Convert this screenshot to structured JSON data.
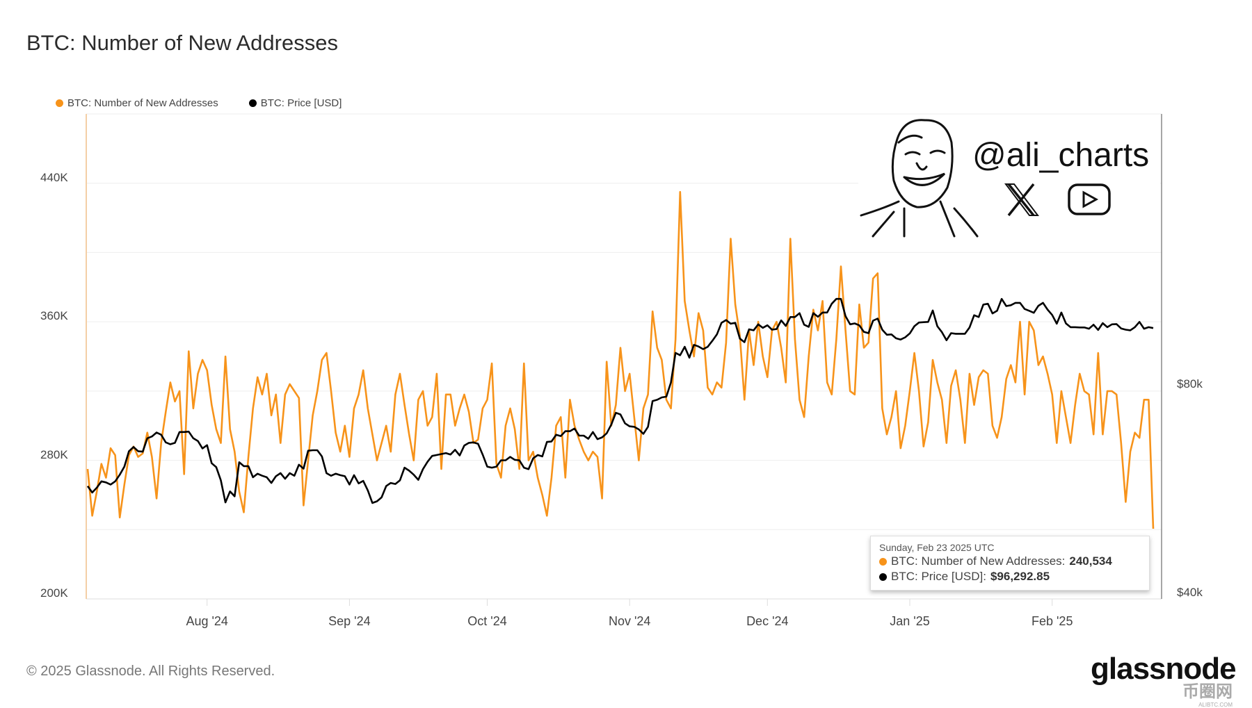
{
  "title": "BTC: Number of New Addresses",
  "legend": [
    {
      "label": "BTC: Number of New Addresses",
      "color": "#f7931a"
    },
    {
      "label": "BTC: Price [USD]",
      "color": "#000000"
    }
  ],
  "footer": "© 2025 Glassnode. All Rights Reserved.",
  "logo": "glassnode",
  "watermark": {
    "handle": "@ali_charts",
    "icons": [
      "x-icon",
      "youtube-icon"
    ],
    "site_logo": "币圈网",
    "site_sub": "ALIBTC.COM"
  },
  "tooltip": {
    "date": "Sunday, Feb 23 2025 UTC",
    "rows": [
      {
        "label": "BTC: Number of New Addresses:",
        "value": "240,534",
        "color": "#f7931a"
      },
      {
        "label": "BTC: Price [USD]:",
        "value": "$96,292.85",
        "color": "#000000"
      }
    ]
  },
  "chart_data": {
    "type": "line",
    "title": "BTC: Number of New Addresses",
    "start_date": "2024-07-06",
    "end_date": "2025-02-23",
    "x_ticks": [
      {
        "date": "2024-08-01",
        "label": "Aug '24"
      },
      {
        "date": "2024-09-01",
        "label": "Sep '24"
      },
      {
        "date": "2024-10-01",
        "label": "Oct '24"
      },
      {
        "date": "2024-11-01",
        "label": "Nov '24"
      },
      {
        "date": "2024-12-01",
        "label": "Dec '24"
      },
      {
        "date": "2025-01-01",
        "label": "Jan '25"
      },
      {
        "date": "2025-02-01",
        "label": "Feb '25"
      }
    ],
    "y_left": {
      "ticks": [
        {
          "v": 200,
          "label": "200K"
        },
        {
          "v": 280,
          "label": "280K"
        },
        {
          "v": 360,
          "label": "360K"
        },
        {
          "v": 440,
          "label": "440K"
        }
      ],
      "grid": [
        200,
        240,
        280,
        320,
        360,
        400,
        440
      ],
      "range": [
        200,
        480
      ],
      "unit": "K addresses"
    },
    "y_right": {
      "ticks": [
        {
          "v": 40,
          "label": "$40k"
        },
        {
          "v": 80,
          "label": "$80k"
        }
      ],
      "scale": "log",
      "range": [
        39.2,
        196
      ],
      "unit": "k USD"
    },
    "series": [
      {
        "name": "BTC: Number of New Addresses",
        "color": "#f7931a",
        "unit": "K",
        "values": [
          275,
          248,
          262,
          278,
          270,
          287,
          283,
          247,
          266,
          283,
          288,
          282,
          284,
          296,
          282,
          258,
          290,
          308,
          325,
          314,
          320,
          272,
          343,
          310,
          330,
          338,
          332,
          312,
          298,
          290,
          340,
          298,
          285,
          262,
          250,
          282,
          310,
          328,
          318,
          330,
          306,
          318,
          290,
          318,
          324,
          320,
          316,
          254,
          280,
          306,
          320,
          338,
          342,
          320,
          296,
          285,
          300,
          282,
          310,
          318,
          332,
          310,
          295,
          280,
          290,
          300,
          285,
          318,
          330,
          312,
          295,
          280,
          315,
          320,
          300,
          305,
          330,
          275,
          318,
          318,
          300,
          310,
          318,
          308,
          290,
          292,
          310,
          315,
          336,
          278,
          270,
          300,
          310,
          298,
          275,
          336,
          280,
          285,
          270,
          260,
          248,
          270,
          300,
          305,
          270,
          315,
          300,
          292,
          285,
          280,
          285,
          282,
          258,
          337,
          300,
          312,
          345,
          320,
          330,
          305,
          280,
          310,
          318,
          366,
          345,
          338,
          315,
          310,
          350,
          435,
          372,
          355,
          340,
          365,
          355,
          322,
          318,
          325,
          322,
          348,
          408,
          370,
          352,
          315,
          355,
          335,
          360,
          340,
          328,
          355,
          360,
          345,
          325,
          408,
          350,
          315,
          305,
          340,
          367,
          355,
          372,
          325,
          318,
          350,
          392,
          355,
          320,
          318,
          370,
          345,
          348,
          385,
          388,
          310,
          295,
          305,
          320,
          287,
          300,
          320,
          342,
          320,
          288,
          302,
          338,
          325,
          315,
          290,
          323,
          332,
          315,
          290,
          330,
          312,
          328,
          332,
          330,
          300,
          293,
          305,
          327,
          335,
          325,
          360,
          318,
          360,
          355,
          335,
          340,
          330,
          318,
          290,
          320,
          305,
          290,
          312,
          330,
          320,
          318,
          295,
          342,
          295,
          320,
          320,
          318,
          290,
          256,
          285,
          296,
          293,
          315,
          315,
          240.534
        ]
      },
      {
        "name": "BTC: Price [USD]",
        "color": "#000000",
        "unit": "k USD",
        "values": [
          57.0,
          55.8,
          56.7,
          57.9,
          57.7,
          57.3,
          57.9,
          59.2,
          60.8,
          64.0,
          64.9,
          64.0,
          63.9,
          66.8,
          67.2,
          68.1,
          67.6,
          65.9,
          65.5,
          65.8,
          68.2,
          68.2,
          68.3,
          66.8,
          66.2,
          64.6,
          65.3,
          61.5,
          60.7,
          58.1,
          54.0,
          56.0,
          55.1,
          61.7,
          60.9,
          60.9,
          58.7,
          59.4,
          59.0,
          58.7,
          57.6,
          58.9,
          59.5,
          58.4,
          59.5,
          59.0,
          61.2,
          60.4,
          64.1,
          64.2,
          64.2,
          62.9,
          59.5,
          59.0,
          59.4,
          59.1,
          58.9,
          57.3,
          59.1,
          57.5,
          58.0,
          56.2,
          53.9,
          54.2,
          54.9,
          57.0,
          57.6,
          57.4,
          58.1,
          60.6,
          60.0,
          59.2,
          58.2,
          60.3,
          61.8,
          63.0,
          63.2,
          63.4,
          63.6,
          63.3,
          64.3,
          63.1,
          65.2,
          65.8,
          65.9,
          65.6,
          63.3,
          60.8,
          60.6,
          60.8,
          62.1,
          62.1,
          62.8,
          62.2,
          62.1,
          60.6,
          60.3,
          62.5,
          63.2,
          62.9,
          66.0,
          66.1,
          67.6,
          67.3,
          68.4,
          68.4,
          69.0,
          67.4,
          67.4,
          66.7,
          68.2,
          66.6,
          67.0,
          67.9,
          69.9,
          72.7,
          72.3,
          70.2,
          69.5,
          69.4,
          68.8,
          67.8,
          69.4,
          75.6,
          75.9,
          76.5,
          76.7,
          80.4,
          88.7,
          88.0,
          90.5,
          87.3,
          91.1,
          90.6,
          89.8,
          90.5,
          92.3,
          94.3,
          98.0,
          98.9,
          97.7,
          98.0,
          93.0,
          91.9,
          95.9,
          95.6,
          97.5,
          96.4,
          97.2,
          95.8,
          96.0,
          98.8,
          97.0,
          99.9,
          99.9,
          101.2,
          97.4,
          96.7,
          101.2,
          100.0,
          101.4,
          101.4,
          104.4,
          106.1,
          106.1,
          100.2,
          97.5,
          97.8,
          97.2,
          95.1,
          94.7,
          98.7,
          99.4,
          95.8,
          94.2,
          94.3,
          93.1,
          92.7,
          93.4,
          94.6,
          96.9,
          98.1,
          98.2,
          98.3,
          102.1,
          96.9,
          95.0,
          92.5,
          94.7,
          94.5,
          94.5,
          94.5,
          96.5,
          100.5,
          99.9,
          104.1,
          104.4,
          101.1,
          102.0,
          106.1,
          103.6,
          103.9,
          104.7,
          104.7,
          102.6,
          102.0,
          101.3,
          103.7,
          104.7,
          102.4,
          100.6,
          97.7,
          101.4,
          97.8,
          96.6,
          96.6,
          96.5,
          96.5,
          96.1,
          97.4,
          95.7,
          97.9,
          96.6,
          97.5,
          97.6,
          96.2,
          95.8,
          95.6,
          96.6,
          98.3,
          96.1,
          96.6,
          96.29285
        ]
      }
    ]
  }
}
